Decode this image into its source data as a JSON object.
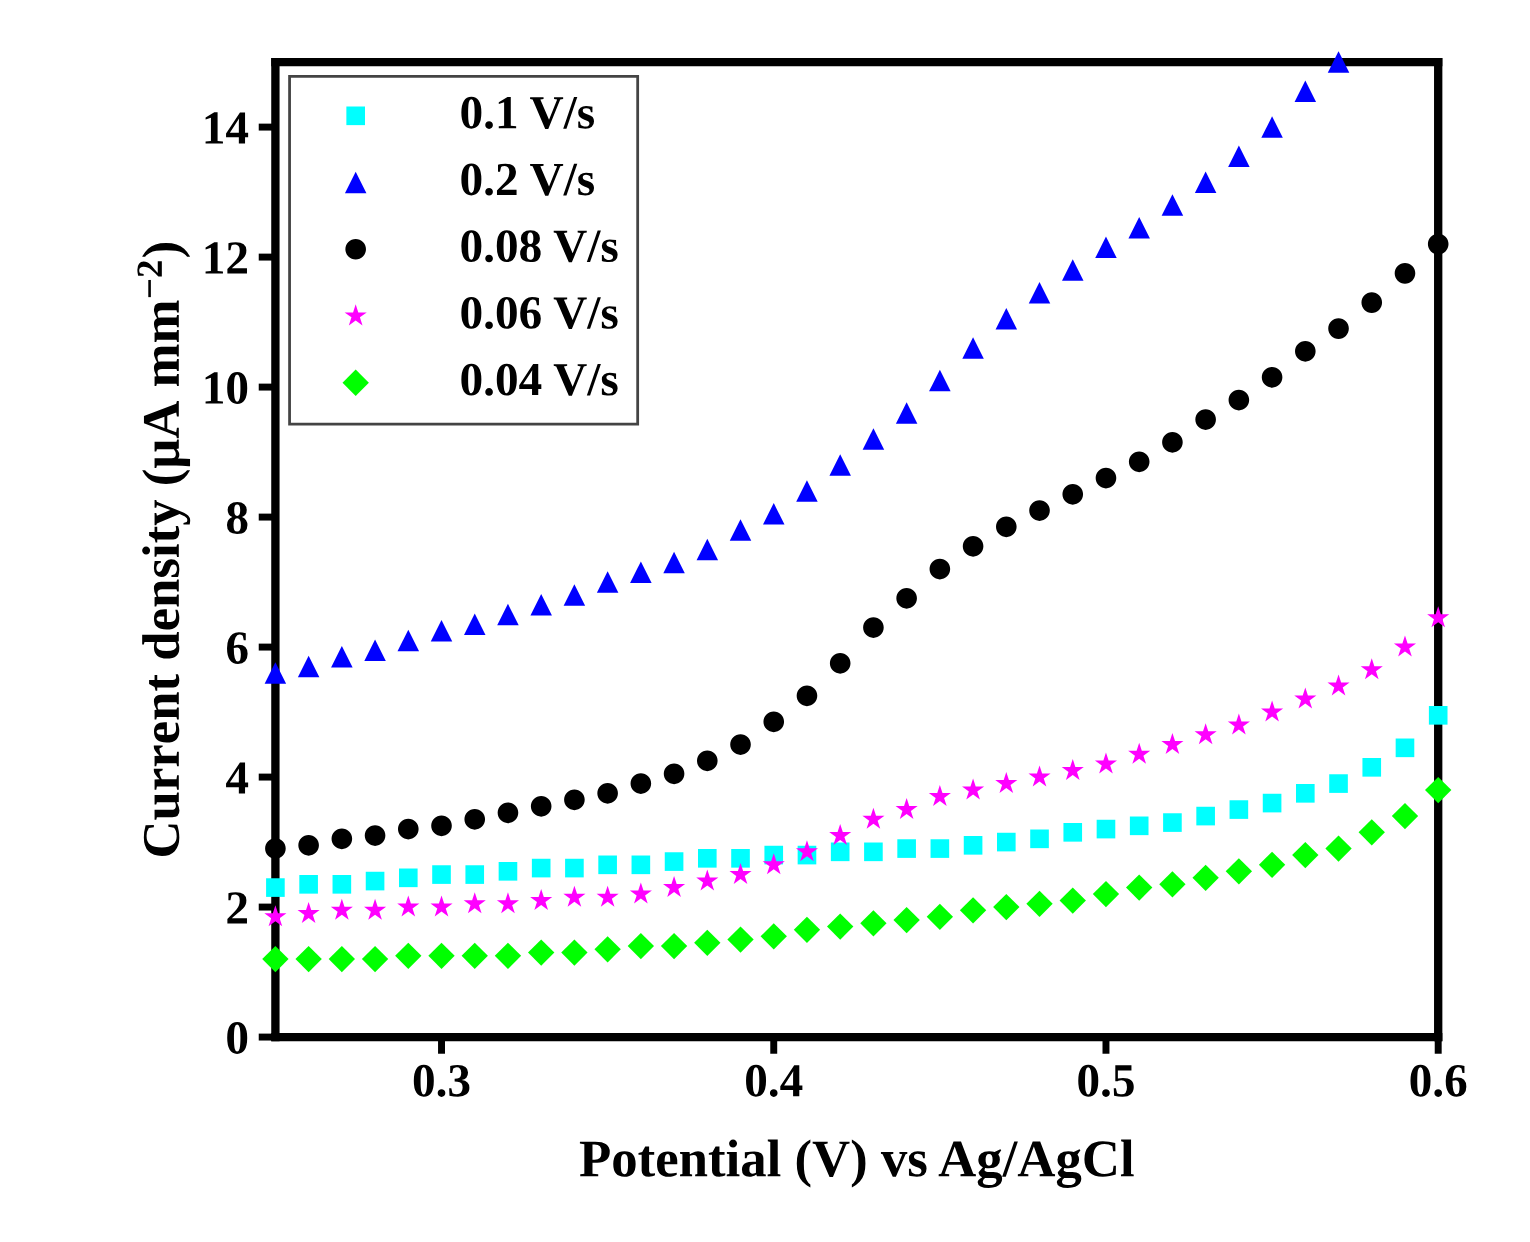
{
  "chart_data": {
    "type": "scatter",
    "xlabel": "Potential (V) vs Ag/AgCl",
    "ylabel": "Current density (μA mm$^{−2}$)",
    "x": [
      0.25,
      0.26,
      0.27,
      0.28,
      0.29,
      0.3,
      0.31,
      0.32,
      0.33,
      0.34,
      0.35,
      0.36,
      0.37,
      0.38,
      0.39,
      0.4,
      0.41,
      0.42,
      0.43,
      0.44,
      0.45,
      0.46,
      0.47,
      0.48,
      0.49,
      0.5,
      0.51,
      0.52,
      0.53,
      0.54,
      0.55,
      0.56,
      0.57,
      0.58,
      0.59,
      0.6
    ],
    "series": [
      {
        "name": "0.1 V/s",
        "color": "#00ffff",
        "marker": "square",
        "values": [
          2.3,
          2.35,
          2.35,
          2.4,
          2.45,
          2.5,
          2.5,
          2.55,
          2.6,
          2.6,
          2.65,
          2.65,
          2.7,
          2.75,
          2.75,
          2.8,
          2.8,
          2.85,
          2.85,
          2.9,
          2.9,
          2.95,
          3.0,
          3.05,
          3.15,
          3.2,
          3.25,
          3.3,
          3.4,
          3.5,
          3.6,
          3.75,
          3.9,
          4.15,
          4.45,
          4.95
        ]
      },
      {
        "name": "0.2 V/s",
        "color": "#0000ff",
        "marker": "triangle",
        "values": [
          5.6,
          5.7,
          5.85,
          5.95,
          6.1,
          6.25,
          6.35,
          6.5,
          6.65,
          6.8,
          7.0,
          7.15,
          7.3,
          7.5,
          7.8,
          8.05,
          8.4,
          8.8,
          9.2,
          9.6,
          10.1,
          10.6,
          11.05,
          11.45,
          11.8,
          12.15,
          12.45,
          12.8,
          13.15,
          13.55,
          14.0,
          14.55,
          15.0,
          null,
          null,
          null
        ]
      },
      {
        "name": "0.08 V/s",
        "color": "#000000",
        "marker": "circle",
        "values": [
          2.9,
          2.95,
          3.05,
          3.1,
          3.2,
          3.25,
          3.35,
          3.45,
          3.55,
          3.65,
          3.75,
          3.9,
          4.05,
          4.25,
          4.5,
          4.85,
          5.25,
          5.75,
          6.3,
          6.75,
          7.2,
          7.55,
          7.85,
          8.1,
          8.35,
          8.6,
          8.85,
          9.15,
          9.5,
          9.8,
          10.15,
          10.55,
          10.9,
          11.3,
          11.75,
          12.2
        ]
      },
      {
        "name": "0.06 V/s",
        "color": "#ff00ff",
        "marker": "star",
        "values": [
          1.85,
          1.9,
          1.95,
          1.95,
          2.0,
          2.0,
          2.05,
          2.05,
          2.1,
          2.15,
          2.15,
          2.2,
          2.3,
          2.4,
          2.5,
          2.65,
          2.85,
          3.1,
          3.35,
          3.5,
          3.7,
          3.8,
          3.9,
          4.0,
          4.1,
          4.2,
          4.35,
          4.5,
          4.65,
          4.8,
          5.0,
          5.2,
          5.4,
          5.65,
          6.0,
          6.45
        ]
      },
      {
        "name": "0.04 V/s",
        "color": "#00ff00",
        "marker": "diamond",
        "values": [
          1.2,
          1.2,
          1.2,
          1.2,
          1.25,
          1.25,
          1.25,
          1.25,
          1.3,
          1.3,
          1.35,
          1.4,
          1.4,
          1.45,
          1.5,
          1.55,
          1.65,
          1.7,
          1.75,
          1.8,
          1.85,
          1.95,
          2.0,
          2.05,
          2.1,
          2.2,
          2.3,
          2.35,
          2.45,
          2.55,
          2.65,
          2.8,
          2.9,
          3.15,
          3.4,
          3.8
        ]
      }
    ],
    "xlim": [
      0.25,
      0.6
    ],
    "xticks": [
      0.3,
      0.4,
      0.5,
      0.6
    ],
    "ylim": [
      0,
      15
    ],
    "yticks": [
      0,
      2,
      4,
      6,
      8,
      10,
      12,
      14
    ],
    "grid": false,
    "legend": "top left"
  }
}
